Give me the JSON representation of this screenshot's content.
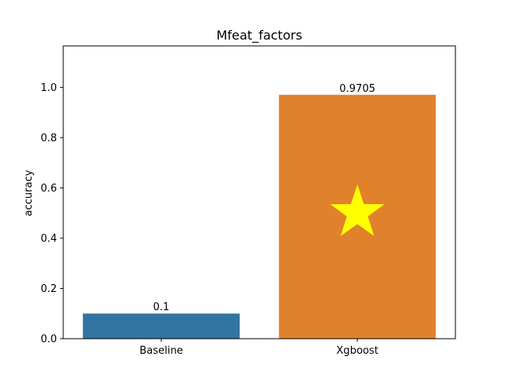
{
  "chart_data": {
    "type": "bar",
    "title": "Mfeat_factors",
    "xlabel": "",
    "ylabel": "accuracy",
    "categories": [
      "Baseline",
      "Xgboost"
    ],
    "values": [
      0.1,
      0.9705
    ],
    "value_labels": [
      "0.1",
      "0.9705"
    ],
    "ylim": [
      0,
      1.165
    ],
    "yticks": [
      0.0,
      0.2,
      0.4,
      0.6,
      0.8,
      1.0
    ],
    "ytick_labels": [
      "0.0",
      "0.2",
      "0.4",
      "0.6",
      "0.8",
      "1.0"
    ],
    "grid": false,
    "legend": "none",
    "bar_colors": [
      "#3274a1",
      "#e1812c"
    ],
    "highlight": {
      "category": "Xgboost",
      "marker": "star",
      "color": "#ffff00",
      "y_value": 0.5
    }
  }
}
